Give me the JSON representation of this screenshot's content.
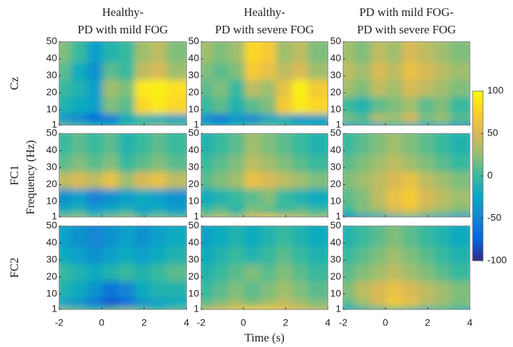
{
  "chart_data": {
    "type": "heatmap",
    "col_titles": [
      [
        "Healthy-",
        "PD with mild FOG"
      ],
      [
        "Healthy-",
        "PD with severe FOG"
      ],
      [
        "PD with mild FOG-",
        "PD with severe FOG"
      ]
    ],
    "row_labels": [
      "Cz",
      "FC1",
      "FC2"
    ],
    "xlabel": "Time (s)",
    "ylabel": "Frequency (Hz)",
    "xlim": [
      -2,
      4
    ],
    "xticks": [
      -2,
      0,
      2,
      4
    ],
    "ylim": [
      1,
      50
    ],
    "yticks": [
      1,
      10,
      20,
      30,
      40,
      50
    ],
    "x_bins": [
      -2,
      -1.25,
      -0.5,
      0.25,
      1,
      1.75,
      2.5,
      3.25,
      4
    ],
    "y_bins": [
      1,
      5,
      10,
      20,
      30,
      40,
      50
    ],
    "clim": [
      -100,
      100
    ],
    "cticks": [
      -100,
      -50,
      0,
      50,
      100
    ],
    "colormap": [
      "#352a87",
      "#0363e1",
      "#1485d4",
      "#06a7c6",
      "#38b99e",
      "#92bf73",
      "#d9ba56",
      "#fcce2e",
      "#f9fb0e"
    ],
    "panels": [
      [
        [
          [
            10,
            0,
            -10,
            -20,
            0,
            10,
            20,
            10
          ],
          [
            -40,
            -50,
            -70,
            -60,
            -20,
            -10,
            -20,
            -30
          ],
          [
            -10,
            -20,
            -30,
            20,
            10,
            80,
            90,
            80
          ],
          [
            0,
            -10,
            -30,
            30,
            20,
            90,
            95,
            85
          ],
          [
            10,
            -20,
            -40,
            10,
            0,
            40,
            50,
            30
          ],
          [
            20,
            0,
            -30,
            -10,
            0,
            30,
            40,
            20
          ]
        ],
        [
          [
            -10,
            -20,
            -10,
            0,
            10,
            0,
            -10,
            -20
          ],
          [
            -50,
            -60,
            -40,
            -50,
            -30,
            -20,
            -40,
            -30
          ],
          [
            0,
            10,
            -10,
            10,
            20,
            70,
            90,
            80
          ],
          [
            10,
            20,
            0,
            40,
            30,
            60,
            95,
            70
          ],
          [
            20,
            10,
            20,
            70,
            60,
            40,
            50,
            30
          ],
          [
            30,
            20,
            30,
            80,
            70,
            30,
            40,
            20
          ]
        ],
        [
          [
            -30,
            -10,
            -20,
            0,
            -10,
            -20,
            -10,
            -30
          ],
          [
            20,
            10,
            40,
            30,
            50,
            20,
            30,
            10
          ],
          [
            0,
            -10,
            10,
            20,
            30,
            10,
            20,
            0
          ],
          [
            30,
            20,
            40,
            30,
            50,
            40,
            30,
            20
          ],
          [
            40,
            30,
            50,
            40,
            60,
            50,
            40,
            30
          ],
          [
            30,
            20,
            40,
            30,
            50,
            40,
            30,
            20
          ]
        ]
      ],
      [
        [
          [
            20,
            30,
            10,
            20,
            30,
            10,
            20,
            10
          ],
          [
            -20,
            -10,
            -30,
            -20,
            -10,
            -30,
            -20,
            -30
          ],
          [
            -40,
            -30,
            -50,
            -40,
            -30,
            -20,
            -30,
            -40
          ],
          [
            40,
            50,
            40,
            60,
            30,
            50,
            60,
            40
          ],
          [
            10,
            20,
            10,
            20,
            0,
            10,
            20,
            10
          ],
          [
            0,
            10,
            0,
            10,
            -10,
            0,
            10,
            0
          ]
        ],
        [
          [
            30,
            40,
            30,
            50,
            60,
            50,
            40,
            30
          ],
          [
            0,
            10,
            -10,
            20,
            10,
            0,
            10,
            0
          ],
          [
            -20,
            -10,
            0,
            10,
            20,
            0,
            -10,
            -20
          ],
          [
            10,
            20,
            30,
            60,
            50,
            40,
            30,
            20
          ],
          [
            0,
            10,
            20,
            40,
            30,
            20,
            10,
            0
          ],
          [
            -10,
            0,
            10,
            30,
            20,
            10,
            0,
            -10
          ]
        ],
        [
          [
            -40,
            -30,
            -20,
            -10,
            0,
            -10,
            -20,
            -30
          ],
          [
            0,
            20,
            30,
            50,
            60,
            40,
            30,
            20
          ],
          [
            10,
            20,
            40,
            60,
            70,
            50,
            40,
            30
          ],
          [
            20,
            30,
            40,
            50,
            60,
            40,
            30,
            20
          ],
          [
            10,
            20,
            30,
            40,
            30,
            20,
            10,
            0
          ],
          [
            0,
            10,
            20,
            30,
            20,
            10,
            0,
            -10
          ]
        ]
      ],
      [
        [
          [
            20,
            10,
            0,
            10,
            20,
            10,
            0,
            10
          ],
          [
            -30,
            -40,
            -60,
            -80,
            -70,
            -40,
            -30,
            -20
          ],
          [
            -10,
            -20,
            -40,
            -60,
            -50,
            -20,
            -10,
            -10
          ],
          [
            0,
            -10,
            -20,
            -10,
            0,
            -10,
            0,
            10
          ],
          [
            -20,
            -30,
            -40,
            -30,
            -20,
            -30,
            -20,
            -10
          ],
          [
            -30,
            -40,
            -50,
            -40,
            -30,
            -40,
            -30,
            -20
          ]
        ],
        [
          [
            40,
            50,
            60,
            70,
            70,
            60,
            50,
            40
          ],
          [
            10,
            20,
            30,
            20,
            30,
            40,
            30,
            20
          ],
          [
            0,
            10,
            20,
            10,
            20,
            30,
            20,
            10
          ],
          [
            -10,
            0,
            10,
            20,
            10,
            20,
            10,
            0
          ],
          [
            -20,
            -10,
            0,
            -10,
            0,
            10,
            0,
            -10
          ],
          [
            -30,
            -20,
            -10,
            -20,
            -10,
            0,
            -10,
            -20
          ]
        ],
        [
          [
            -20,
            -10,
            0,
            10,
            0,
            -10,
            0,
            -10
          ],
          [
            10,
            30,
            50,
            70,
            60,
            40,
            30,
            20
          ],
          [
            20,
            40,
            50,
            60,
            50,
            40,
            30,
            20
          ],
          [
            10,
            20,
            30,
            40,
            30,
            20,
            10,
            0
          ],
          [
            0,
            10,
            20,
            30,
            20,
            10,
            0,
            -10
          ],
          [
            -10,
            0,
            10,
            20,
            10,
            0,
            -10,
            -20
          ]
        ]
      ]
    ]
  }
}
